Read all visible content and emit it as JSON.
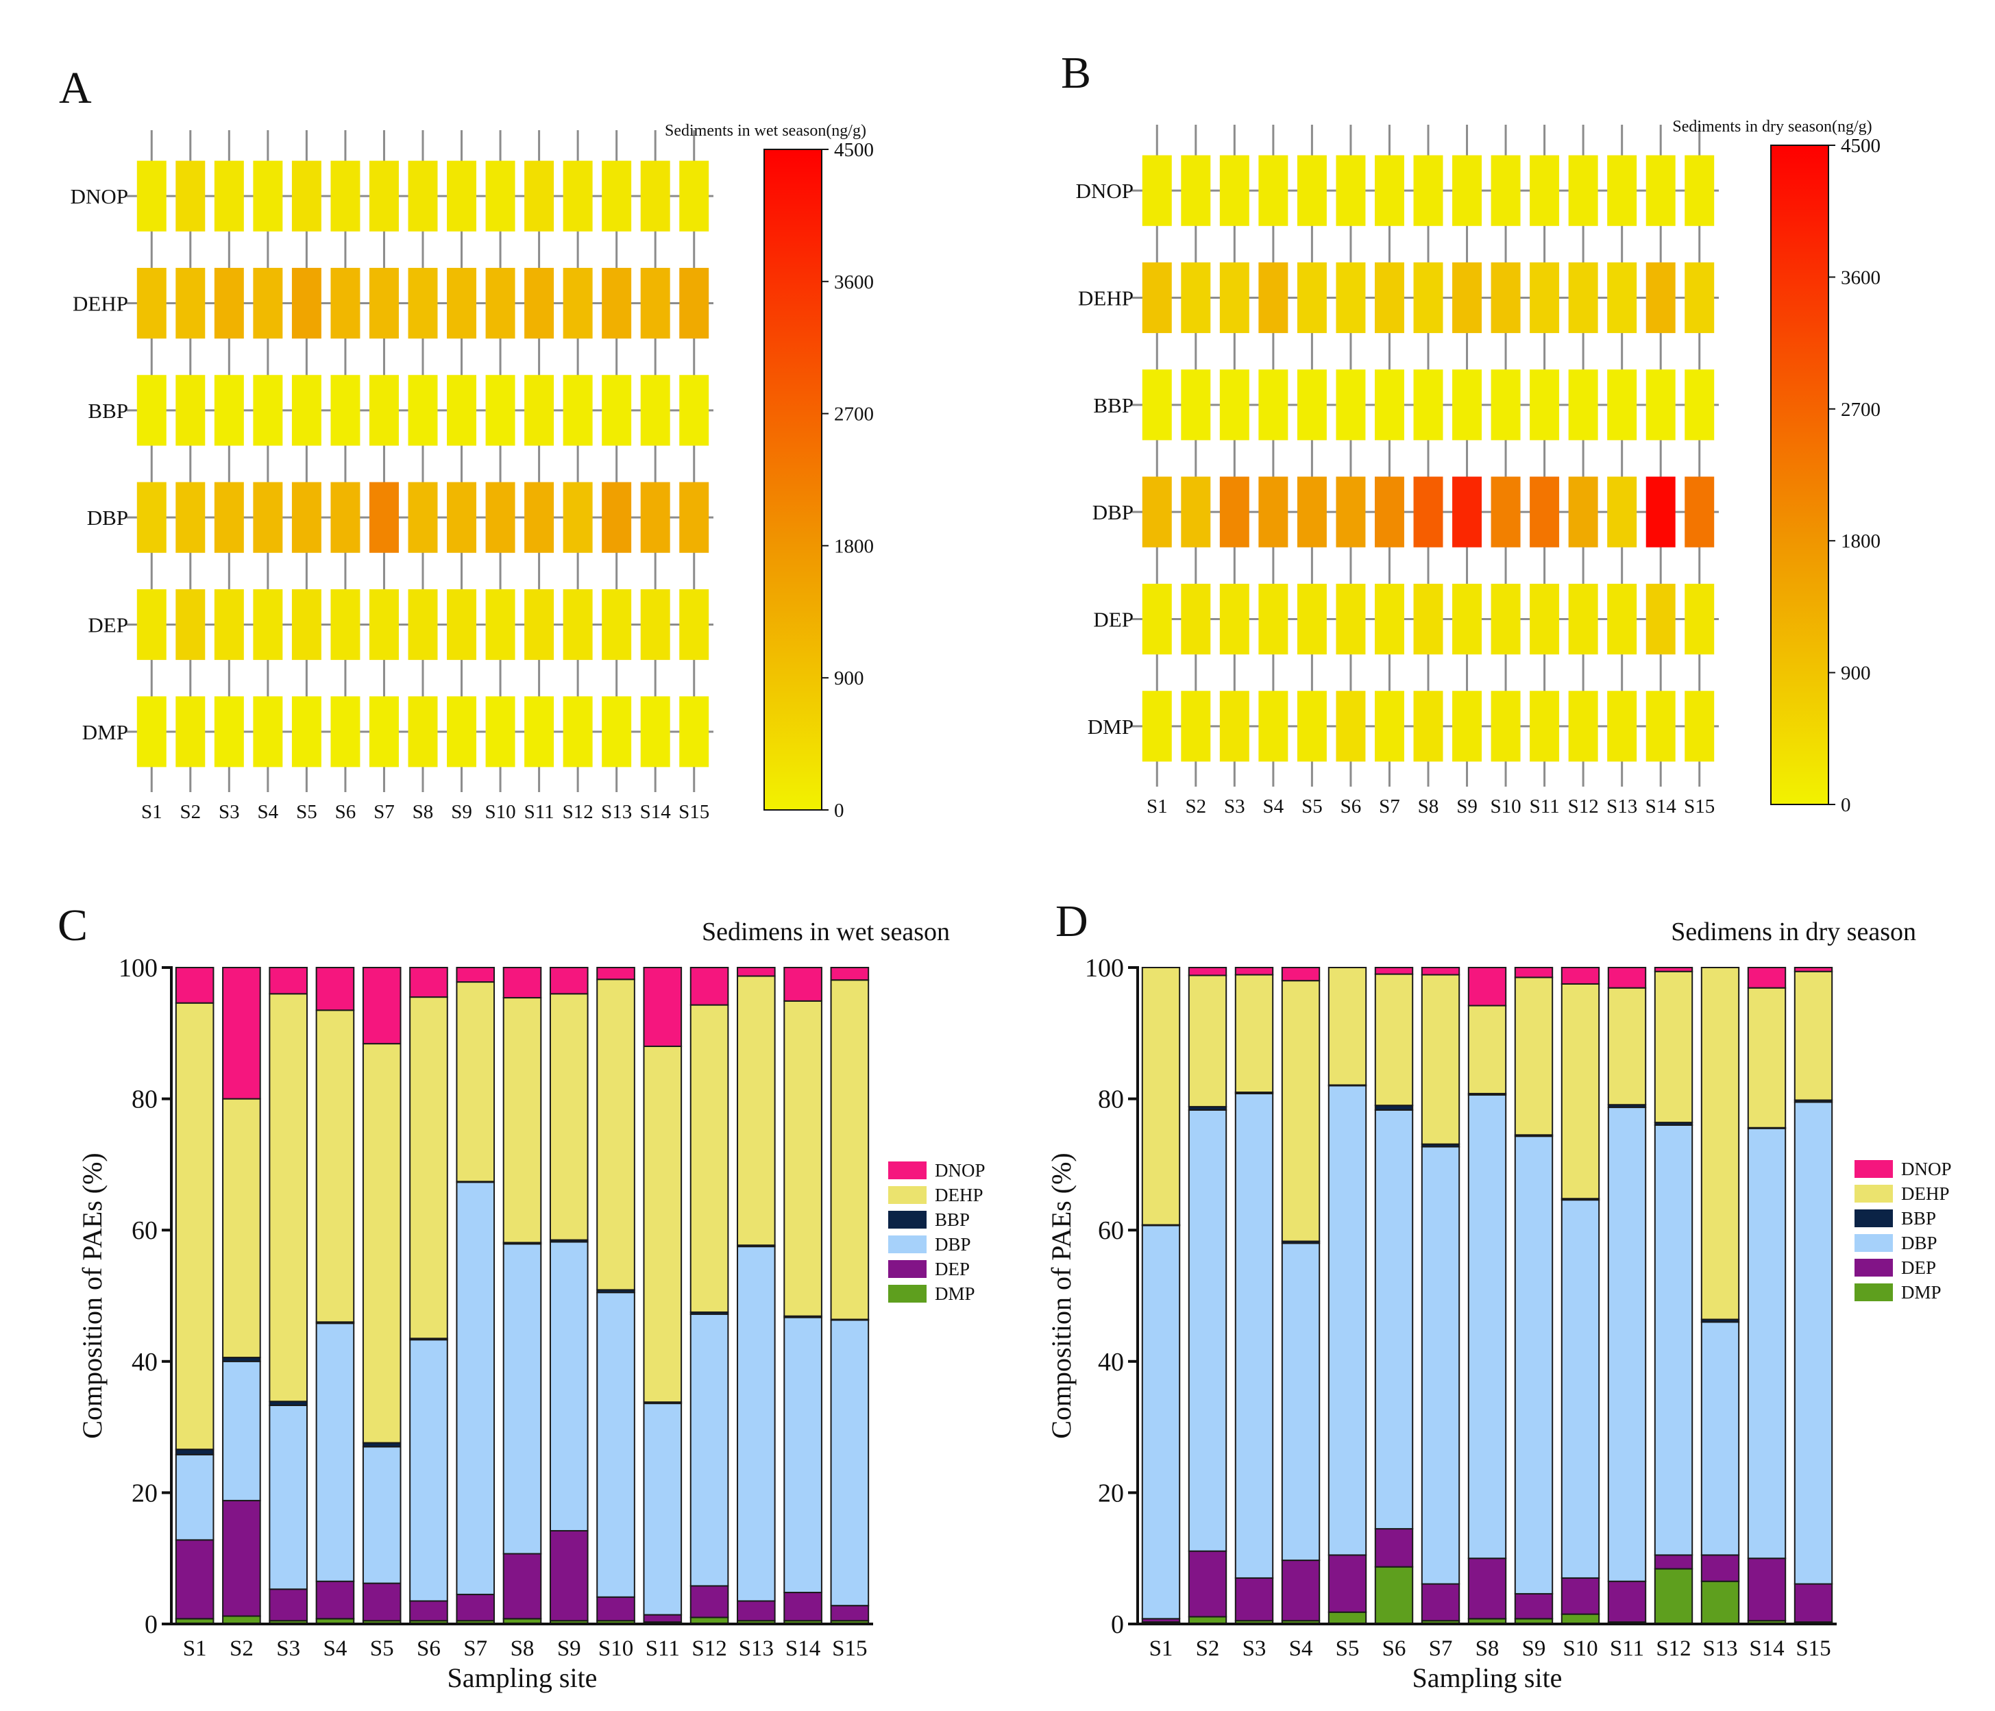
{
  "colors": {
    "cmap_low": "#f2f200",
    "cmap_mid": "#f09600",
    "cmap_high": "#ff0000",
    "grid": "#8c8c8c",
    "axis": "#111111"
  },
  "components": [
    {
      "name": "DNOP",
      "color": "#f5167e"
    },
    {
      "name": "DEHP",
      "color": "#ebe36e"
    },
    {
      "name": "BBP",
      "color": "#0b2346"
    },
    {
      "name": "DBP",
      "color": "#a6d1fa"
    },
    {
      "name": "DEP",
      "color": "#821487"
    },
    {
      "name": "DMP",
      "color": "#5e9f1e"
    }
  ],
  "chart_data": [
    {
      "type": "heatmap",
      "panel_label": "A",
      "colorbar_title": "Sediments in wet season(ng/g)",
      "vmin": 0,
      "vmax": 4500,
      "colorbar_ticks": [
        "0",
        "900",
        "1800",
        "2700",
        "3600",
        "4500"
      ],
      "rows": [
        "DNOP",
        "DEHP",
        "BBP",
        "DBP",
        "DEP",
        "DMP"
      ],
      "cols": [
        "S1",
        "S2",
        "S3",
        "S4",
        "S5",
        "S6",
        "S7",
        "S8",
        "S9",
        "S10",
        "S11",
        "S12",
        "S13",
        "S14",
        "S15"
      ],
      "values": [
        [
          200,
          450,
          250,
          200,
          350,
          250,
          280,
          250,
          220,
          200,
          380,
          250,
          220,
          280,
          200
        ],
        [
          950,
          1000,
          1250,
          1100,
          1500,
          1150,
          1100,
          1000,
          1050,
          1100,
          1250,
          1050,
          1300,
          1200,
          1400
        ],
        [
          100,
          150,
          100,
          100,
          120,
          100,
          130,
          100,
          120,
          100,
          150,
          120,
          100,
          120,
          100
        ],
        [
          700,
          900,
          1050,
          1100,
          1200,
          1200,
          2100,
          1100,
          1150,
          1250,
          1300,
          950,
          1600,
          1350,
          1300
        ],
        [
          250,
          600,
          350,
          280,
          350,
          250,
          250,
          300,
          320,
          250,
          350,
          300,
          250,
          300,
          250
        ],
        [
          100,
          150,
          100,
          120,
          100,
          100,
          100,
          150,
          120,
          100,
          100,
          120,
          100,
          100,
          100
        ]
      ]
    },
    {
      "type": "heatmap",
      "panel_label": "B",
      "colorbar_title": "Sediments in dry season(ng/g)",
      "vmin": 0,
      "vmax": 4500,
      "colorbar_ticks": [
        "0",
        "900",
        "1800",
        "2700",
        "3600",
        "4500"
      ],
      "rows": [
        "DNOP",
        "DEHP",
        "BBP",
        "DBP",
        "DEP",
        "DMP"
      ],
      "cols": [
        "S1",
        "S2",
        "S3",
        "S4",
        "S5",
        "S6",
        "S7",
        "S8",
        "S9",
        "S10",
        "S11",
        "S12",
        "S13",
        "S14",
        "S15"
      ],
      "values": [
        [
          150,
          150,
          150,
          150,
          150,
          150,
          150,
          150,
          150,
          150,
          150,
          150,
          150,
          150,
          150
        ],
        [
          900,
          600,
          650,
          1150,
          600,
          550,
          750,
          600,
          1000,
          900,
          650,
          600,
          500,
          1150,
          600
        ],
        [
          100,
          100,
          100,
          100,
          100,
          100,
          100,
          100,
          100,
          100,
          100,
          100,
          100,
          100,
          100
        ],
        [
          1100,
          1000,
          2050,
          1700,
          1650,
          1600,
          2000,
          2800,
          3800,
          2200,
          2400,
          1400,
          700,
          4400,
          2400
        ],
        [
          200,
          300,
          250,
          250,
          250,
          300,
          250,
          400,
          250,
          250,
          250,
          250,
          250,
          700,
          250
        ],
        [
          150,
          200,
          250,
          200,
          200,
          400,
          200,
          300,
          200,
          200,
          200,
          200,
          200,
          200,
          200
        ]
      ]
    },
    {
      "type": "bar",
      "stacked": true,
      "panel_label": "C",
      "title": "Sedimens in wet season",
      "xlabel": "Sampling site",
      "ylabel": "Composition of PAEs (%)",
      "ylim": [
        0,
        100
      ],
      "yticks": [
        "0",
        "20",
        "40",
        "60",
        "80",
        "100"
      ],
      "categories": [
        "S1",
        "S2",
        "S3",
        "S4",
        "S5",
        "S6",
        "S7",
        "S8",
        "S9",
        "S10",
        "S11",
        "S12",
        "S13",
        "S14",
        "S15"
      ],
      "series": [
        {
          "name": "DMP",
          "values": [
            0.8,
            1.2,
            0.5,
            0.8,
            0.5,
            0.5,
            0.5,
            0.8,
            0.5,
            0.5,
            0.3,
            1.0,
            0.5,
            0.5,
            0.5
          ]
        },
        {
          "name": "DEP",
          "values": [
            12,
            17.6,
            4.8,
            5.7,
            5.7,
            3.0,
            4.0,
            9.9,
            13.7,
            3.6,
            1.1,
            4.8,
            3.0,
            4.3,
            2.3
          ]
        },
        {
          "name": "DBP",
          "values": [
            13,
            21.2,
            28.0,
            39.3,
            20.8,
            39.8,
            62.8,
            47.2,
            44.0,
            46.4,
            32.2,
            41.4,
            54.0,
            41.9,
            43.5
          ]
        },
        {
          "name": "BBP",
          "values": [
            0.8,
            0.6,
            0.6,
            0.2,
            0.6,
            0.2,
            0.1,
            0.2,
            0.3,
            0.4,
            0.2,
            0.3,
            0.2,
            0.2,
            0.1
          ]
        },
        {
          "name": "DEHP",
          "values": [
            68,
            39.4,
            62.1,
            47.5,
            60.8,
            52.0,
            30.4,
            37.3,
            37.5,
            47.3,
            54.2,
            46.8,
            41.0,
            48.0,
            51.7
          ]
        },
        {
          "name": "DNOP",
          "values": [
            5.4,
            20.0,
            4.0,
            6.5,
            11.6,
            4.5,
            2.2,
            4.6,
            4.0,
            1.8,
            12.0,
            5.7,
            1.3,
            5.1,
            1.9
          ]
        }
      ]
    },
    {
      "type": "bar",
      "stacked": true,
      "panel_label": "D",
      "title": "Sedimens in dry season",
      "xlabel": "Sampling site",
      "ylabel": "Composition of PAEs (%)",
      "ylim": [
        0,
        100
      ],
      "yticks": [
        "0",
        "20",
        "40",
        "60",
        "80",
        "100"
      ],
      "categories": [
        "S1",
        "S2",
        "S3",
        "S4",
        "S5",
        "S6",
        "S7",
        "S8",
        "S9",
        "S10",
        "S11",
        "S12",
        "S13",
        "S14",
        "S15"
      ],
      "series": [
        {
          "name": "DMP",
          "values": [
            0.3,
            1.1,
            0.5,
            0.5,
            1.8,
            8.7,
            0.5,
            0.8,
            0.8,
            1.5,
            0.3,
            8.4,
            6.5,
            0.5,
            0.3
          ]
        },
        {
          "name": "DEP",
          "values": [
            0.5,
            10.0,
            6.5,
            9.2,
            8.7,
            5.8,
            5.6,
            9.2,
            3.8,
            5.5,
            6.2,
            2.1,
            4.0,
            9.5,
            5.8
          ]
        },
        {
          "name": "DBP",
          "values": [
            59.9,
            67.2,
            73.8,
            48.3,
            71.5,
            63.8,
            66.6,
            70.6,
            69.7,
            57.6,
            72.2,
            65.5,
            35.5,
            65.5,
            73.4
          ]
        },
        {
          "name": "BBP",
          "values": [
            0.1,
            0.5,
            0.2,
            0.3,
            0.1,
            0.7,
            0.4,
            0.2,
            0.2,
            0.2,
            0.4,
            0.4,
            0.4,
            0.1,
            0.3
          ]
        },
        {
          "name": "DEHP",
          "values": [
            39.2,
            20.0,
            17.9,
            39.7,
            17.9,
            20.0,
            25.8,
            13.4,
            24.0,
            32.7,
            17.8,
            23.0,
            53.6,
            21.3,
            19.6
          ]
        },
        {
          "name": "DNOP",
          "values": [
            0,
            1.2,
            1.1,
            2.0,
            0,
            1.0,
            1.1,
            5.8,
            1.5,
            2.5,
            3.1,
            0.6,
            0,
            3.1,
            0.6
          ]
        }
      ]
    }
  ]
}
